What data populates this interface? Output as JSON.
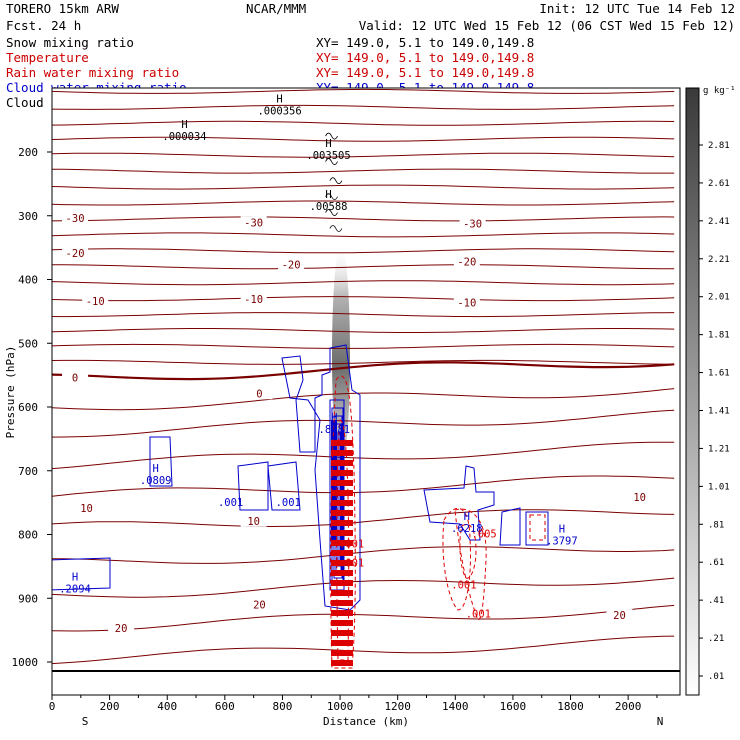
{
  "header": {
    "model": "TORERO  15km ARW",
    "forecast": "Fcst.   24 h",
    "center": "NCAR/MMM",
    "init": "Init: 12 UTC Tue 14 Feb 12",
    "valid": "Valid: 12 UTC Wed 15 Feb 12 (06 CST Wed 15 Feb 12)"
  },
  "legend": [
    {
      "label": "Snow mixing ratio",
      "color": "#000000",
      "xy": "XY= 149.0,  5.1 to 149.0,149.8"
    },
    {
      "label": "Temperature",
      "color": "#cc0000",
      "xy": "XY= 149.0,  5.1 to 149.0,149.8"
    },
    {
      "label": "Rain water mixing ratio",
      "color": "#cc0000",
      "xy": "XY= 149.0,  5.1 to 149.0,149.8"
    },
    {
      "label": "Cloud water mixing ratio",
      "color": "#0000cc",
      "xy": "XY= 149.0,  5.1 to 149.0,149.8"
    },
    {
      "label": "Cloud ice mixing ratio",
      "color": "#000000",
      "xy": "XY= 149.0,  5.1 to 149.0,149.8"
    }
  ],
  "colors": {
    "temperature": "#7a0000",
    "freezing": "#7a0000",
    "rain": "#dd0000",
    "cloud_water": "#0000cc",
    "cloud_ice": "#000000"
  },
  "chart_data": {
    "type": "heatmap",
    "title": "Vertical cross section",
    "xlabel": "Distance (km)",
    "ylabel": "Pressure (hPa)",
    "xlim": [
      0,
      2180
    ],
    "ylim": [
      1050,
      100
    ],
    "x_ticks": [
      0,
      200,
      400,
      600,
      800,
      1000,
      1200,
      1400,
      1600,
      1800,
      2000
    ],
    "y_ticks": [
      200,
      300,
      400,
      500,
      600,
      700,
      800,
      900,
      1000
    ],
    "endpoint_labels": {
      "left": "S",
      "right": "N"
    },
    "colorbar": {
      "unit": "g kg⁻¹",
      "ticks": [
        "2.81",
        "2.61",
        "2.41",
        "2.21",
        "2.01",
        "1.81",
        "1.61",
        "1.41",
        "1.21",
        "1.01",
        ".81",
        ".61",
        ".41",
        ".21",
        ".01"
      ]
    },
    "temperature_contour_labels": [
      {
        "text": "-30",
        "x": 80,
        "p": 305
      },
      {
        "text": "-30",
        "x": 700,
        "p": 312
      },
      {
        "text": "-30",
        "x": 1460,
        "p": 314
      },
      {
        "text": "-20",
        "x": 80,
        "p": 360
      },
      {
        "text": "-20",
        "x": 830,
        "p": 378
      },
      {
        "text": "-20",
        "x": 1440,
        "p": 373
      },
      {
        "text": "-10",
        "x": 150,
        "p": 435
      },
      {
        "text": "-10",
        "x": 700,
        "p": 432
      },
      {
        "text": "-10",
        "x": 1440,
        "p": 438
      },
      {
        "text": "0",
        "x": 80,
        "p": 555
      },
      {
        "text": "0",
        "x": 720,
        "p": 580
      },
      {
        "text": "10",
        "x": 120,
        "p": 760
      },
      {
        "text": "10",
        "x": 700,
        "p": 780
      },
      {
        "text": "10",
        "x": 2040,
        "p": 743
      },
      {
        "text": "20",
        "x": 240,
        "p": 948
      },
      {
        "text": "20",
        "x": 720,
        "p": 911
      },
      {
        "text": "20",
        "x": 1970,
        "p": 928
      }
    ],
    "extrema_labels": [
      {
        "mark": "H",
        "value": ".000356",
        "x": 790,
        "p": 130,
        "color": "#000000"
      },
      {
        "mark": "H",
        "value": ".000034",
        "x": 460,
        "p": 170,
        "color": "#000000"
      },
      {
        "mark": "H",
        "value": ".003505",
        "x": 960,
        "p": 200,
        "color": "#000000"
      },
      {
        "mark": "H",
        "value": ".00588",
        "x": 960,
        "p": 280,
        "color": "#000000"
      },
      {
        "mark": "H",
        "value": ".0809",
        "x": 360,
        "p": 710,
        "color": "#0000cc"
      },
      {
        "mark": "H",
        "value": ".2094",
        "x": 80,
        "p": 880,
        "color": "#0000cc"
      },
      {
        "mark": "H",
        "value": ".3797",
        "x": 1770,
        "p": 805,
        "color": "#0000cc"
      },
      {
        "mark": "H",
        "value": ".6218",
        "x": 1440,
        "p": 785,
        "color": "#0000cc"
      },
      {
        "mark": "H",
        "value": ".8481",
        "x": 980,
        "p": 630,
        "color": "#0000cc"
      }
    ],
    "contour_value_labels": [
      {
        "text": ".001",
        "x": 620,
        "p": 755,
        "color": "#0000cc"
      },
      {
        "text": ".001",
        "x": 820,
        "p": 755,
        "color": "#0000cc"
      },
      {
        "text": ".001",
        "x": 1040,
        "p": 820,
        "color": "#dd0000"
      },
      {
        "text": ".001",
        "x": 1040,
        "p": 850,
        "color": "#dd0000"
      },
      {
        "text": ".001",
        "x": 1430,
        "p": 885,
        "color": "#dd0000"
      },
      {
        "text": ".001",
        "x": 1480,
        "p": 930,
        "color": "#dd0000"
      },
      {
        "text": ".005",
        "x": 1500,
        "p": 805,
        "color": "#dd0000"
      }
    ]
  }
}
